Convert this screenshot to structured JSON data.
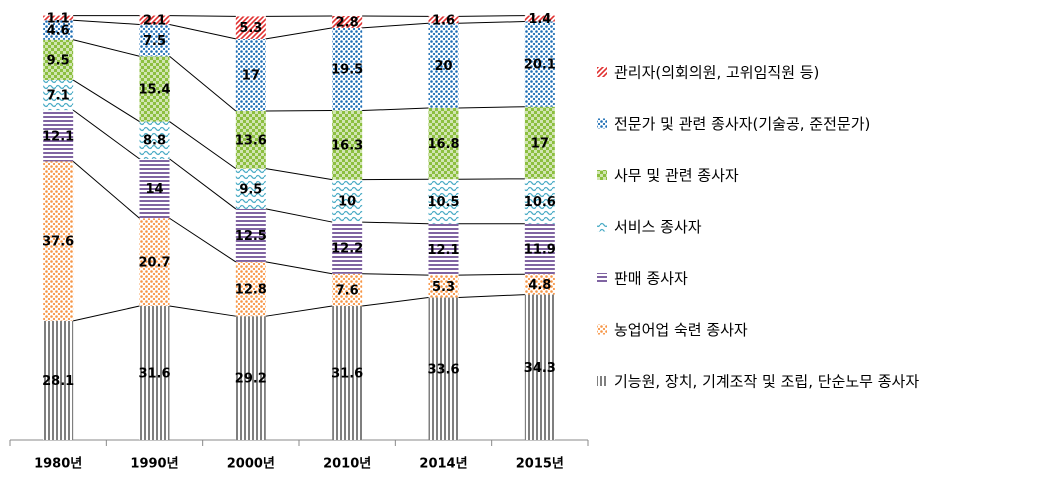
{
  "chart_data": {
    "type": "stacked_bar",
    "categories": [
      "1980년",
      "1990년",
      "2000년",
      "2010년",
      "2014년",
      "2015년"
    ],
    "ylim": [
      0,
      100
    ],
    "series": [
      {
        "name": "기능원, 장치, 기계조작 및 조립, 단순노무 종사자",
        "color": "#7f7f7f",
        "pattern": "vstripes",
        "values": [
          28.1,
          31.6,
          29.2,
          31.6,
          33.6,
          34.3
        ]
      },
      {
        "name": "농업어업 숙련 종사자",
        "color": "#f79646",
        "pattern": "dots",
        "values": [
          37.6,
          20.7,
          12.8,
          7.6,
          5.3,
          4.8
        ]
      },
      {
        "name": "판매 종사자",
        "color": "#8064a2",
        "pattern": "hstripes",
        "values": [
          12.1,
          14.0,
          12.5,
          12.2,
          12.1,
          11.9
        ]
      },
      {
        "name": "서비스 종사자",
        "color": "#4bacc6",
        "pattern": "wave",
        "values": [
          7.1,
          8.8,
          9.5,
          10.0,
          10.5,
          10.6
        ]
      },
      {
        "name": "사무 및 관련 종사자",
        "color": "#8cbf3f",
        "pattern": "checker",
        "values": [
          9.5,
          15.4,
          13.6,
          16.3,
          16.8,
          17.0
        ]
      },
      {
        "name": "전문가 및 관련 종사자(기술공, 준전문가)",
        "color": "#1f6fb5",
        "pattern": "dots",
        "values": [
          4.6,
          7.5,
          17.0,
          19.5,
          20.0,
          20.1
        ]
      },
      {
        "name": "관리자(의회의원, 고위임직원 등)",
        "color": "#e03030",
        "pattern": "diagonal",
        "values": [
          1.1,
          2.1,
          5.3,
          2.8,
          1.6,
          1.4
        ]
      }
    ]
  }
}
